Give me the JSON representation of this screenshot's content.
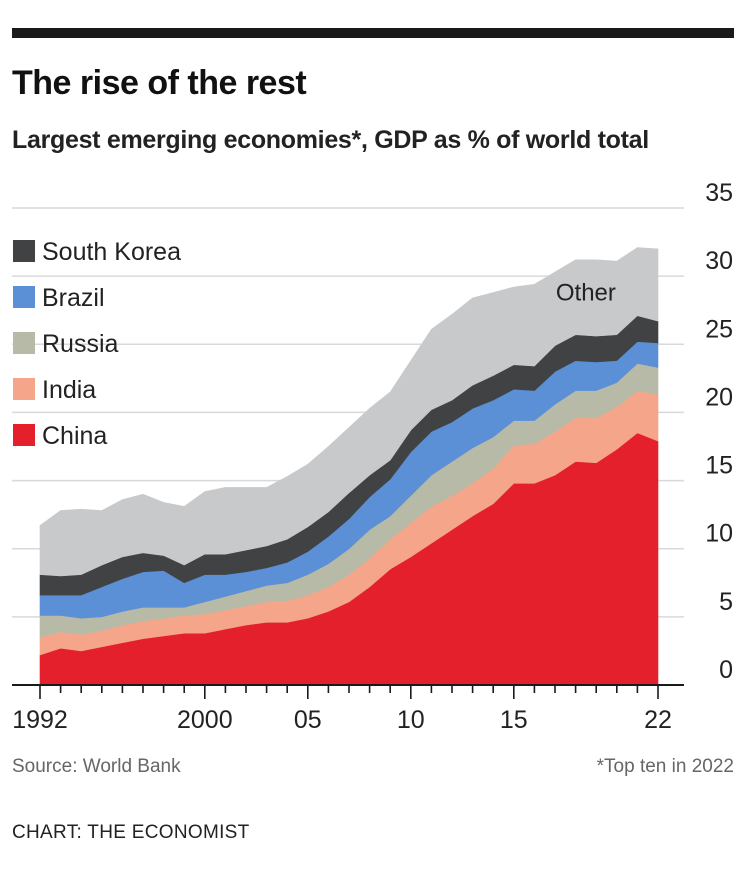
{
  "header": {
    "title": "The rise of the rest",
    "subtitle": "Largest emerging economies*, GDP as % of world total"
  },
  "footer": {
    "source": "Source: World Bank",
    "footnote": "*Top ten in 2022",
    "credit": "CHART: THE ECONOMIST"
  },
  "chart_data": {
    "type": "area",
    "stacked": true,
    "title": "The rise of the rest",
    "subtitle": "Largest emerging economies*, GDP as % of world total",
    "x": [
      1992,
      1993,
      1994,
      1995,
      1996,
      1997,
      1998,
      1999,
      2000,
      2001,
      2002,
      2003,
      2004,
      2005,
      2006,
      2007,
      2008,
      2009,
      2010,
      2011,
      2012,
      2013,
      2014,
      2015,
      2016,
      2017,
      2018,
      2019,
      2020,
      2021,
      2022
    ],
    "x_tick_values": [
      1992,
      2000,
      2005,
      2010,
      2015,
      2022
    ],
    "x_tick_labels": [
      "1992",
      "2000",
      "05",
      "10",
      "15",
      "22"
    ],
    "y_ticks": [
      0,
      5,
      10,
      15,
      20,
      25,
      30,
      35
    ],
    "ylim": [
      0,
      35
    ],
    "grid": true,
    "legend_position": "left",
    "series": [
      {
        "name": "China",
        "color": "#e3202b",
        "values": [
          2.2,
          2.7,
          2.5,
          2.8,
          3.1,
          3.4,
          3.6,
          3.8,
          3.8,
          4.1,
          4.4,
          4.6,
          4.6,
          4.9,
          5.4,
          6.1,
          7.2,
          8.5,
          9.4,
          10.4,
          11.4,
          12.4,
          13.3,
          14.8,
          14.8,
          15.4,
          16.4,
          16.3,
          17.3,
          18.5,
          17.9
        ]
      },
      {
        "name": "India",
        "color": "#f5a58a",
        "values": [
          1.3,
          1.2,
          1.2,
          1.2,
          1.3,
          1.3,
          1.3,
          1.3,
          1.4,
          1.4,
          1.4,
          1.5,
          1.6,
          1.7,
          1.8,
          2.0,
          2.1,
          2.2,
          2.5,
          2.7,
          2.5,
          2.4,
          2.6,
          2.8,
          2.9,
          3.2,
          3.2,
          3.3,
          3.1,
          3.1,
          3.4
        ]
      },
      {
        "name": "Russia",
        "color": "#b7baa7",
        "values": [
          1.6,
          1.2,
          1.2,
          1.0,
          1.0,
          1.0,
          0.8,
          0.6,
          0.9,
          1.0,
          1.1,
          1.2,
          1.3,
          1.5,
          1.7,
          1.9,
          2.1,
          1.7,
          2.0,
          2.3,
          2.5,
          2.6,
          2.3,
          1.8,
          1.7,
          2.0,
          2.0,
          2.0,
          1.8,
          2.0,
          2.0
        ]
      },
      {
        "name": "Brazil",
        "color": "#5b8fd6",
        "values": [
          1.5,
          1.5,
          1.7,
          2.2,
          2.4,
          2.6,
          2.7,
          1.8,
          2.0,
          1.6,
          1.4,
          1.3,
          1.5,
          1.7,
          2.0,
          2.2,
          2.4,
          2.7,
          3.2,
          3.2,
          2.9,
          2.9,
          2.7,
          2.3,
          2.2,
          2.4,
          2.2,
          2.1,
          1.6,
          1.6,
          1.8
        ]
      },
      {
        "name": "South Korea",
        "color": "#414244",
        "values": [
          1.5,
          1.4,
          1.5,
          1.6,
          1.6,
          1.4,
          1.1,
          1.3,
          1.5,
          1.5,
          1.6,
          1.6,
          1.7,
          1.8,
          1.8,
          1.9,
          1.6,
          1.4,
          1.6,
          1.6,
          1.6,
          1.7,
          1.8,
          1.8,
          1.8,
          1.9,
          1.9,
          1.9,
          1.9,
          1.9,
          1.6
        ]
      },
      {
        "name": "Other",
        "color": "#c8c9cb",
        "values": [
          3.6,
          4.8,
          4.8,
          4.0,
          4.2,
          4.3,
          3.9,
          4.3,
          4.6,
          4.9,
          4.6,
          4.3,
          4.6,
          4.6,
          4.8,
          4.8,
          4.9,
          5.0,
          5.1,
          5.9,
          6.3,
          6.4,
          6.1,
          5.7,
          6.0,
          5.4,
          5.5,
          5.6,
          5.4,
          5.0,
          5.3
        ]
      }
    ],
    "legend": [
      "South Korea",
      "Brazil",
      "Russia",
      "India",
      "China"
    ],
    "annotations": [
      {
        "text": "Other",
        "x": 2018.5,
        "y": 28.2
      }
    ]
  }
}
